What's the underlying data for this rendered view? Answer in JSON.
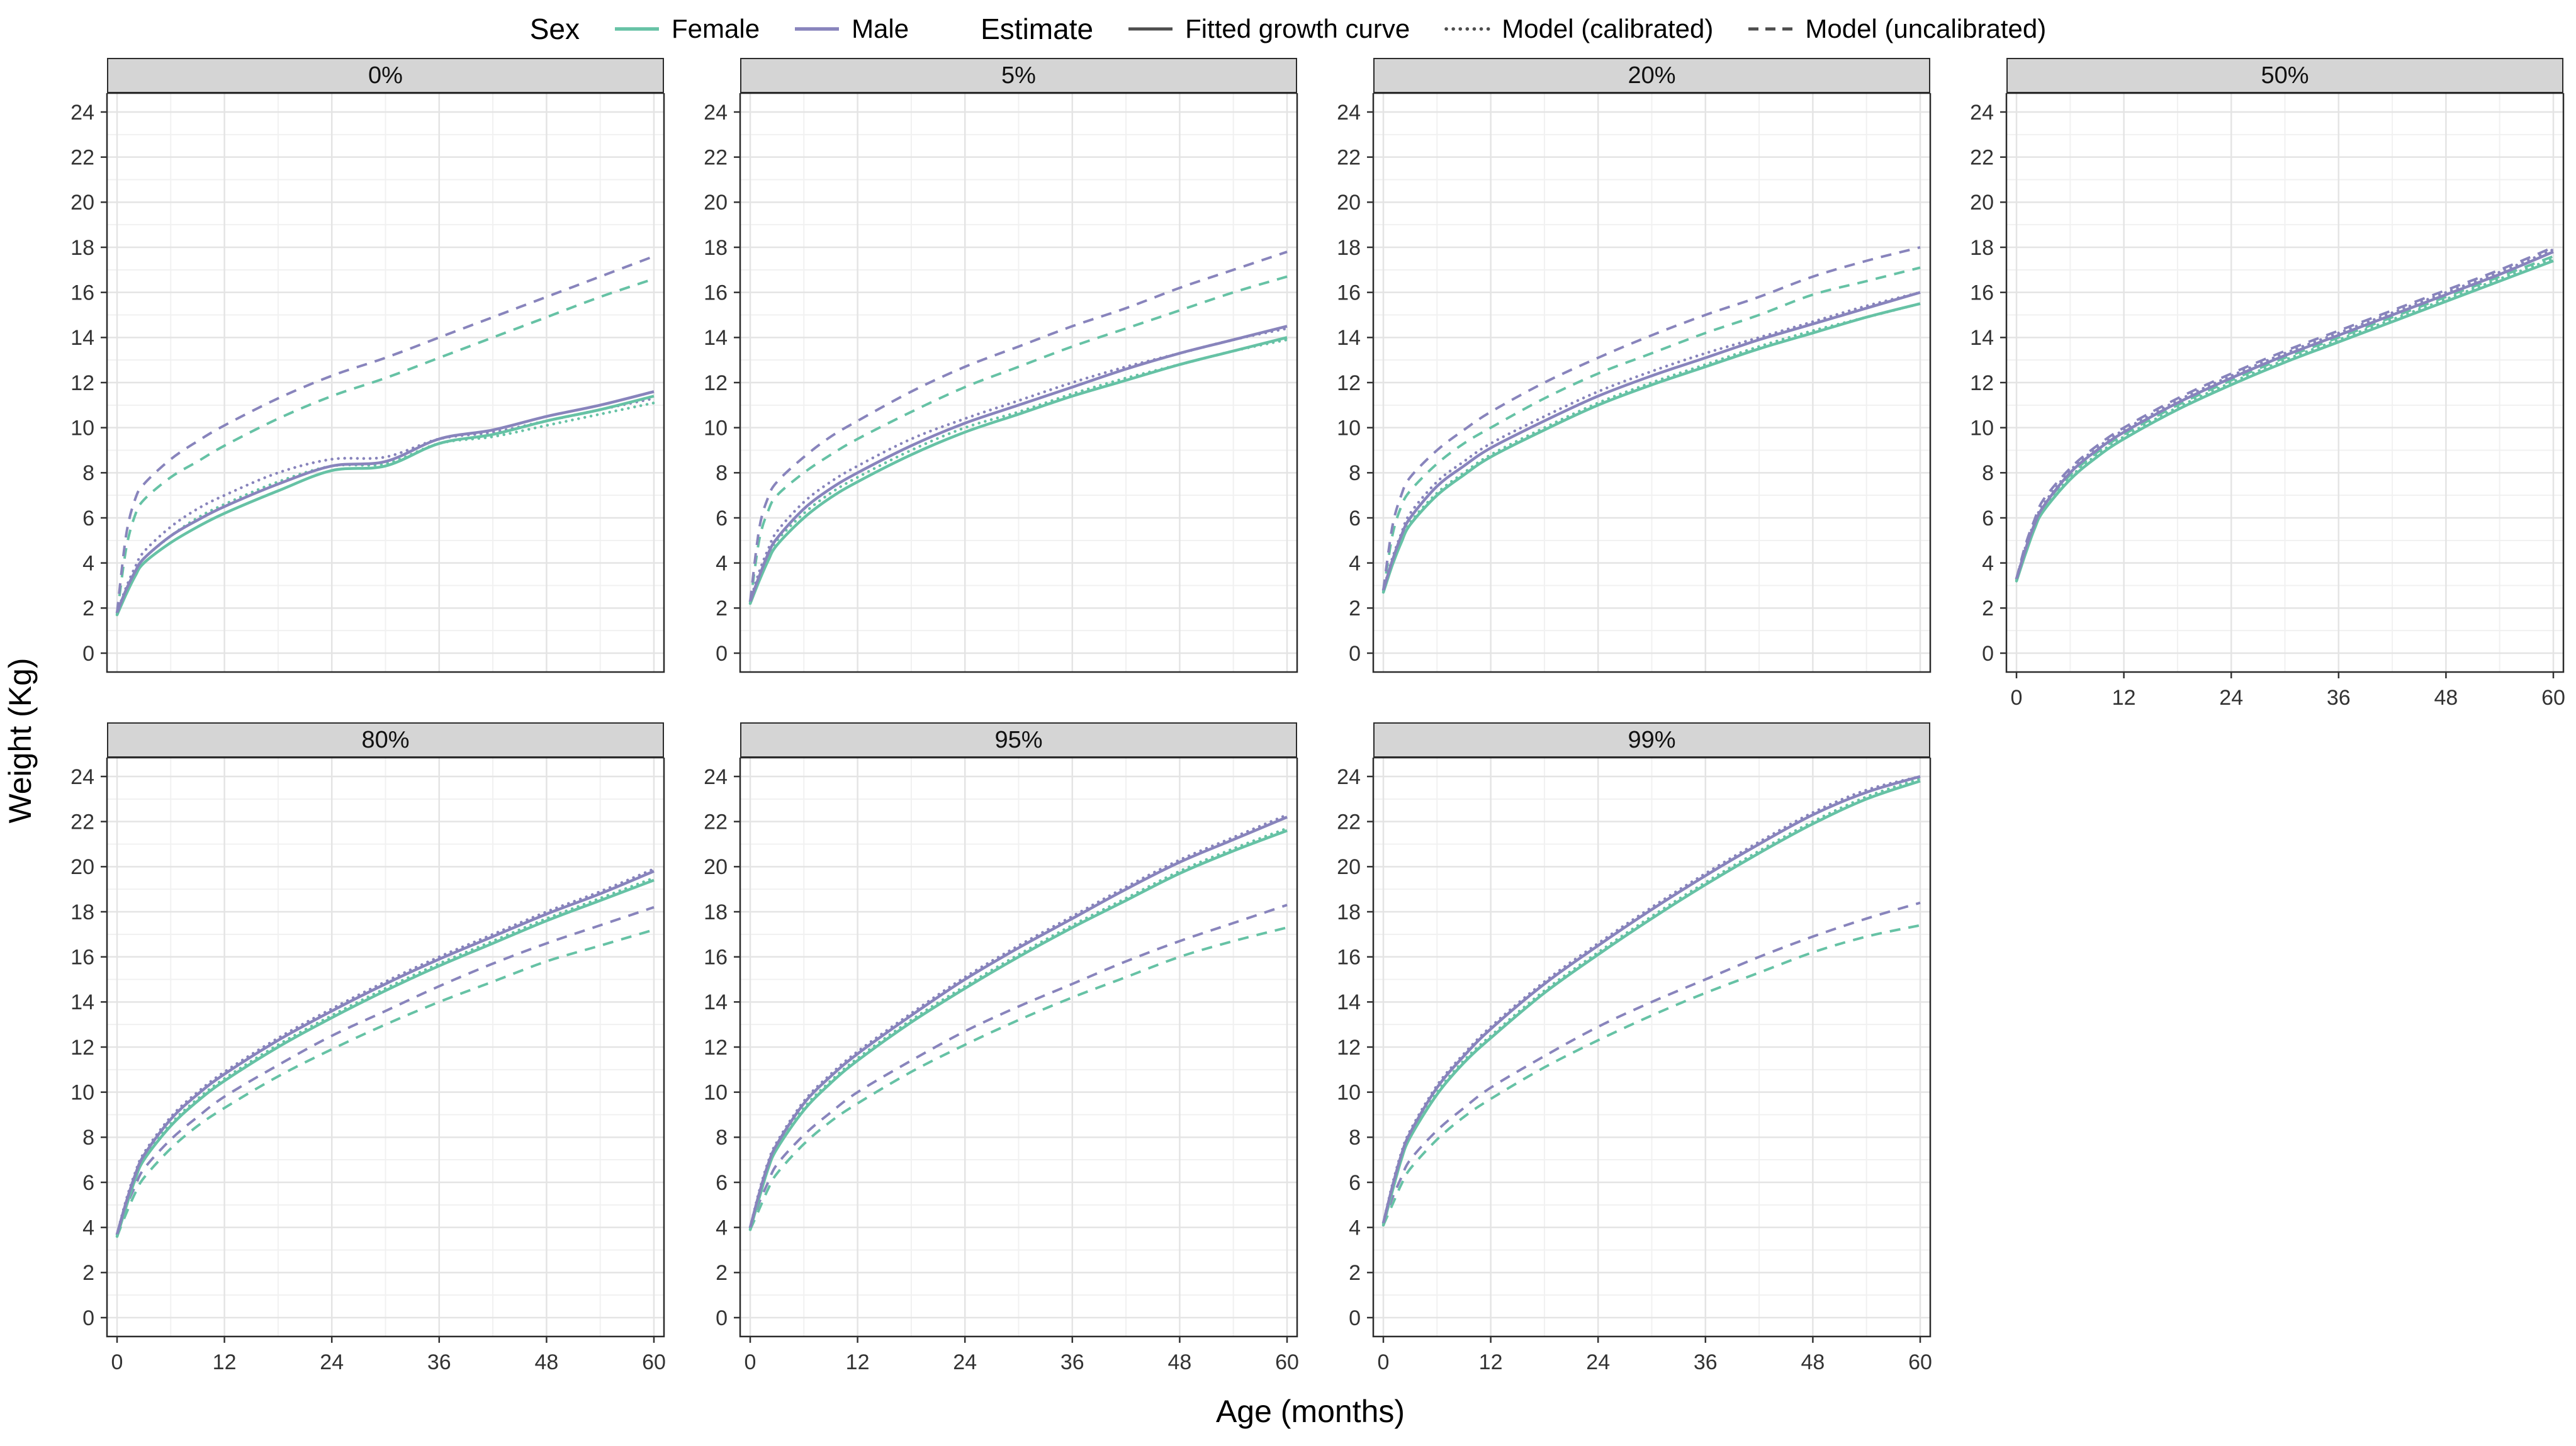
{
  "legend": {
    "sex": {
      "title": "Sex",
      "items": [
        {
          "label": "Female",
          "color": "#66c2a5"
        },
        {
          "label": "Male",
          "color": "#8884bc"
        }
      ]
    },
    "estimate": {
      "title": "Estimate",
      "key_color": "#4d4d4d",
      "items": [
        {
          "label": "Fitted growth curve",
          "dash": "solid"
        },
        {
          "label": "Model (calibrated)",
          "dash": "dotted"
        },
        {
          "label": "Model (uncalibrated)",
          "dash": "dashed"
        }
      ]
    }
  },
  "axes": {
    "x_label": "Age (months)",
    "y_label": "Weight (Kg)",
    "x_range": [
      0,
      60
    ],
    "y_range": [
      0,
      24
    ],
    "x_ticks": [
      0,
      12,
      24,
      36,
      48,
      60
    ],
    "x_minor": [
      6,
      18,
      30,
      42,
      54
    ],
    "y_ticks": [
      0,
      2,
      4,
      6,
      8,
      10,
      12,
      14,
      16,
      18,
      20,
      22,
      24
    ],
    "y_minor": [
      1,
      3,
      5,
      7,
      9,
      11,
      13,
      15,
      17,
      19,
      21,
      23
    ]
  },
  "chart_data": {
    "type": "line",
    "title": "",
    "xlabel": "Age (months)",
    "ylabel": "Weight (Kg)",
    "xlim": [
      0,
      60
    ],
    "ylim": [
      0,
      24
    ],
    "grid": true,
    "legend_position": "top",
    "x": [
      0,
      1,
      2,
      3,
      6,
      9,
      12,
      18,
      24,
      30,
      36,
      42,
      48,
      54,
      60
    ],
    "facets": [
      {
        "label": "0%",
        "show_x": false,
        "series": [
          {
            "sex": "Female",
            "estimate": "fitted",
            "values": [
              1.7,
              2.6,
              3.4,
              4.0,
              4.9,
              5.6,
              6.2,
              7.2,
              8.1,
              8.3,
              9.3,
              9.7,
              10.3,
              10.8,
              11.4
            ]
          },
          {
            "sex": "Male",
            "estimate": "fitted",
            "values": [
              1.8,
              2.8,
              3.6,
              4.2,
              5.2,
              5.9,
              6.5,
              7.5,
              8.3,
              8.5,
              9.5,
              9.9,
              10.5,
              11.0,
              11.6
            ]
          },
          {
            "sex": "Female",
            "estimate": "calibrated",
            "values": [
              1.7,
              2.7,
              3.6,
              4.2,
              5.2,
              6.0,
              6.6,
              7.6,
              8.3,
              8.4,
              9.3,
              9.6,
              10.1,
              10.6,
              11.1
            ]
          },
          {
            "sex": "Male",
            "estimate": "calibrated",
            "values": [
              1.8,
              2.9,
              3.8,
              4.5,
              5.6,
              6.4,
              7.0,
              8.0,
              8.6,
              8.7,
              9.5,
              9.8,
              10.3,
              10.8,
              11.3
            ]
          },
          {
            "sex": "Female",
            "estimate": "uncalibrated",
            "values": [
              1.7,
              4.6,
              6.1,
              6.8,
              7.8,
              8.5,
              9.2,
              10.4,
              11.4,
              12.2,
              13.1,
              14.0,
              14.9,
              15.8,
              16.6
            ]
          },
          {
            "sex": "Male",
            "estimate": "uncalibrated",
            "values": [
              1.8,
              5.2,
              6.8,
              7.5,
              8.6,
              9.4,
              10.1,
              11.3,
              12.3,
              13.1,
              14.0,
              14.9,
              15.8,
              16.7,
              17.6
            ]
          }
        ]
      },
      {
        "label": "5%",
        "show_x": false,
        "series": [
          {
            "sex": "Female",
            "estimate": "fitted",
            "values": [
              2.2,
              3.2,
              4.1,
              4.8,
              6.0,
              6.9,
              7.6,
              8.8,
              9.8,
              10.6,
              11.4,
              12.1,
              12.8,
              13.4,
              14.0
            ]
          },
          {
            "sex": "Male",
            "estimate": "fitted",
            "values": [
              2.3,
              3.4,
              4.4,
              5.1,
              6.4,
              7.3,
              8.0,
              9.2,
              10.2,
              11.0,
              11.8,
              12.6,
              13.3,
              13.9,
              14.5
            ]
          },
          {
            "sex": "Female",
            "estimate": "calibrated",
            "values": [
              2.2,
              3.4,
              4.3,
              5.0,
              6.2,
              7.1,
              7.8,
              9.0,
              10.0,
              10.7,
              11.5,
              12.2,
              12.8,
              13.4,
              13.9
            ]
          },
          {
            "sex": "Male",
            "estimate": "calibrated",
            "values": [
              2.3,
              3.6,
              4.6,
              5.4,
              6.7,
              7.6,
              8.3,
              9.5,
              10.4,
              11.2,
              12.0,
              12.7,
              13.3,
              13.9,
              14.4
            ]
          },
          {
            "sex": "Female",
            "estimate": "uncalibrated",
            "values": [
              2.2,
              5.0,
              6.3,
              7.0,
              8.0,
              8.8,
              9.5,
              10.7,
              11.8,
              12.7,
              13.6,
              14.4,
              15.2,
              16.0,
              16.7
            ]
          },
          {
            "sex": "Male",
            "estimate": "uncalibrated",
            "values": [
              2.3,
              5.5,
              6.9,
              7.6,
              8.7,
              9.6,
              10.3,
              11.6,
              12.7,
              13.6,
              14.5,
              15.3,
              16.2,
              17.0,
              17.8
            ]
          }
        ]
      },
      {
        "label": "20%",
        "show_x": false,
        "series": [
          {
            "sex": "Female",
            "estimate": "fitted",
            "values": [
              2.7,
              3.9,
              4.9,
              5.7,
              7.0,
              7.9,
              8.7,
              9.9,
              11.0,
              11.9,
              12.7,
              13.5,
              14.2,
              14.9,
              15.5
            ]
          },
          {
            "sex": "Male",
            "estimate": "fitted",
            "values": [
              2.8,
              4.1,
              5.2,
              6.0,
              7.4,
              8.3,
              9.1,
              10.3,
              11.4,
              12.3,
              13.1,
              13.9,
              14.6,
              15.3,
              16.0
            ]
          },
          {
            "sex": "Female",
            "estimate": "calibrated",
            "values": [
              2.7,
              4.0,
              5.0,
              5.8,
              7.1,
              8.0,
              8.8,
              10.0,
              11.1,
              12.0,
              12.8,
              13.6,
              14.3,
              14.9,
              15.5
            ]
          },
          {
            "sex": "Male",
            "estimate": "calibrated",
            "values": [
              2.8,
              4.2,
              5.3,
              6.2,
              7.6,
              8.5,
              9.3,
              10.5,
              11.6,
              12.5,
              13.3,
              14.0,
              14.7,
              15.4,
              16.0
            ]
          },
          {
            "sex": "Female",
            "estimate": "uncalibrated",
            "values": [
              2.7,
              5.2,
              6.5,
              7.2,
              8.4,
              9.3,
              10.0,
              11.3,
              12.4,
              13.3,
              14.2,
              15.0,
              15.9,
              16.5,
              17.1
            ]
          },
          {
            "sex": "Male",
            "estimate": "uncalibrated",
            "values": [
              2.8,
              5.6,
              7.0,
              7.8,
              9.0,
              9.9,
              10.7,
              12.0,
              13.1,
              14.1,
              15.0,
              15.8,
              16.7,
              17.4,
              18.0
            ]
          }
        ]
      },
      {
        "label": "50%",
        "show_x": true,
        "series": [
          {
            "sex": "Female",
            "estimate": "fitted",
            "values": [
              3.2,
              4.4,
              5.5,
              6.3,
              7.7,
              8.7,
              9.5,
              10.8,
              11.9,
              12.9,
              13.8,
              14.7,
              15.6,
              16.5,
              17.4
            ]
          },
          {
            "sex": "Male",
            "estimate": "fitted",
            "values": [
              3.3,
              4.6,
              5.7,
              6.5,
              8.0,
              9.0,
              9.8,
              11.1,
              12.2,
              13.2,
              14.1,
              15.0,
              15.9,
              16.8,
              17.8
            ]
          },
          {
            "sex": "Female",
            "estimate": "calibrated",
            "values": [
              3.2,
              4.5,
              5.6,
              6.4,
              7.8,
              8.8,
              9.6,
              10.9,
              12.0,
              13.0,
              13.9,
              14.8,
              15.7,
              16.6,
              17.5
            ]
          },
          {
            "sex": "Male",
            "estimate": "calibrated",
            "values": [
              3.3,
              4.7,
              5.8,
              6.6,
              8.1,
              9.1,
              9.9,
              11.2,
              12.3,
              13.3,
              14.2,
              15.1,
              16.0,
              16.9,
              17.9
            ]
          },
          {
            "sex": "Female",
            "estimate": "uncalibrated",
            "values": [
              3.2,
              4.6,
              5.7,
              6.5,
              7.9,
              8.9,
              9.7,
              11.0,
              12.1,
              13.1,
              14.0,
              14.9,
              15.8,
              16.7,
              17.6
            ]
          },
          {
            "sex": "Male",
            "estimate": "uncalibrated",
            "values": [
              3.3,
              4.8,
              5.9,
              6.8,
              8.2,
              9.2,
              10.0,
              11.3,
              12.4,
              13.4,
              14.3,
              15.2,
              16.1,
              17.0,
              18.0
            ]
          }
        ]
      },
      {
        "label": "80%",
        "show_x": true,
        "series": [
          {
            "sex": "Female",
            "estimate": "fitted",
            "values": [
              3.6,
              4.9,
              6.1,
              7.0,
              8.5,
              9.6,
              10.5,
              12.0,
              13.3,
              14.5,
              15.6,
              16.6,
              17.6,
              18.5,
              19.4
            ]
          },
          {
            "sex": "Male",
            "estimate": "fitted",
            "values": [
              3.7,
              5.1,
              6.3,
              7.2,
              8.8,
              9.9,
              10.8,
              12.3,
              13.6,
              14.8,
              15.9,
              16.9,
              17.9,
              18.8,
              19.8
            ]
          },
          {
            "sex": "Female",
            "estimate": "calibrated",
            "values": [
              3.6,
              5.0,
              6.2,
              7.1,
              8.6,
              9.7,
              10.6,
              12.1,
              13.4,
              14.6,
              15.7,
              16.7,
              17.7,
              18.6,
              19.5
            ]
          },
          {
            "sex": "Male",
            "estimate": "calibrated",
            "values": [
              3.7,
              5.2,
              6.4,
              7.3,
              8.9,
              10.0,
              10.9,
              12.4,
              13.7,
              14.9,
              16.0,
              17.0,
              18.0,
              18.9,
              19.9
            ]
          },
          {
            "sex": "Female",
            "estimate": "uncalibrated",
            "values": [
              3.6,
              4.6,
              5.5,
              6.2,
              7.5,
              8.5,
              9.3,
              10.7,
              11.9,
              13.0,
              14.0,
              14.9,
              15.8,
              16.5,
              17.2
            ]
          },
          {
            "sex": "Male",
            "estimate": "uncalibrated",
            "values": [
              3.7,
              4.9,
              5.8,
              6.6,
              7.9,
              8.9,
              9.8,
              11.2,
              12.5,
              13.6,
              14.7,
              15.7,
              16.6,
              17.4,
              18.2
            ]
          }
        ]
      },
      {
        "label": "95%",
        "show_x": true,
        "series": [
          {
            "sex": "Female",
            "estimate": "fitted",
            "values": [
              3.9,
              5.3,
              6.6,
              7.5,
              9.2,
              10.4,
              11.4,
              13.1,
              14.6,
              16.0,
              17.3,
              18.5,
              19.7,
              20.7,
              21.6
            ]
          },
          {
            "sex": "Male",
            "estimate": "fitted",
            "values": [
              4.0,
              5.5,
              6.8,
              7.7,
              9.5,
              10.7,
              11.7,
              13.4,
              15.0,
              16.4,
              17.7,
              19.0,
              20.2,
              21.2,
              22.2
            ]
          },
          {
            "sex": "Female",
            "estimate": "calibrated",
            "values": [
              3.9,
              5.4,
              6.7,
              7.6,
              9.3,
              10.5,
              11.5,
              13.2,
              14.7,
              16.1,
              17.4,
              18.6,
              19.8,
              20.8,
              21.7
            ]
          },
          {
            "sex": "Male",
            "estimate": "calibrated",
            "values": [
              4.0,
              5.6,
              6.9,
              7.8,
              9.6,
              10.8,
              11.8,
              13.5,
              15.1,
              16.5,
              17.8,
              19.1,
              20.3,
              21.3,
              22.3
            ]
          },
          {
            "sex": "Female",
            "estimate": "uncalibrated",
            "values": [
              3.9,
              4.8,
              5.7,
              6.4,
              7.7,
              8.7,
              9.5,
              10.9,
              12.1,
              13.2,
              14.2,
              15.1,
              16.0,
              16.7,
              17.3
            ]
          },
          {
            "sex": "Male",
            "estimate": "uncalibrated",
            "values": [
              4.0,
              5.1,
              6.0,
              6.8,
              8.1,
              9.1,
              10.0,
              11.4,
              12.7,
              13.8,
              14.8,
              15.8,
              16.7,
              17.5,
              18.3
            ]
          }
        ]
      },
      {
        "label": "99%",
        "show_x": true,
        "series": [
          {
            "sex": "Female",
            "estimate": "fitted",
            "values": [
              4.1,
              5.6,
              7.0,
              8.0,
              9.9,
              11.3,
              12.4,
              14.4,
              16.1,
              17.7,
              19.2,
              20.6,
              21.9,
              23.0,
              23.8
            ]
          },
          {
            "sex": "Male",
            "estimate": "fitted",
            "values": [
              4.2,
              5.8,
              7.2,
              8.2,
              10.2,
              11.6,
              12.8,
              14.8,
              16.5,
              18.1,
              19.6,
              21.0,
              22.3,
              23.3,
              24.0
            ]
          },
          {
            "sex": "Female",
            "estimate": "calibrated",
            "values": [
              4.1,
              5.7,
              7.1,
              8.1,
              10.0,
              11.4,
              12.5,
              14.5,
              16.2,
              17.8,
              19.3,
              20.7,
              22.0,
              23.1,
              23.9
            ]
          },
          {
            "sex": "Male",
            "estimate": "calibrated",
            "values": [
              4.2,
              5.9,
              7.3,
              8.3,
              10.3,
              11.7,
              12.9,
              14.9,
              16.6,
              18.2,
              19.7,
              21.1,
              22.4,
              23.4,
              24.0
            ]
          },
          {
            "sex": "Female",
            "estimate": "uncalibrated",
            "values": [
              4.1,
              5.0,
              5.9,
              6.6,
              7.9,
              8.9,
              9.7,
              11.1,
              12.3,
              13.4,
              14.4,
              15.3,
              16.2,
              16.9,
              17.4
            ]
          },
          {
            "sex": "Male",
            "estimate": "uncalibrated",
            "values": [
              4.2,
              5.3,
              6.2,
              7.0,
              8.3,
              9.3,
              10.2,
              11.6,
              12.9,
              14.0,
              15.0,
              16.0,
              16.9,
              17.7,
              18.4
            ]
          }
        ]
      }
    ]
  }
}
